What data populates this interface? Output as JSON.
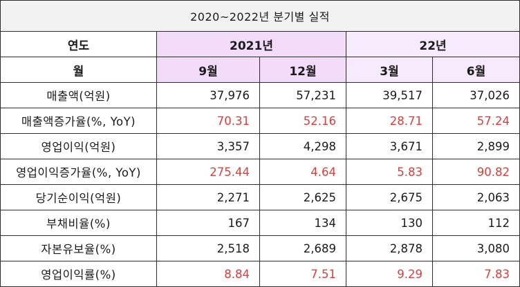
{
  "table": {
    "title": "2020~2022년 분기별 실적",
    "year_header": {
      "label": "연도",
      "groups": [
        "2021년",
        "22년"
      ]
    },
    "month_header": {
      "label": "월",
      "months": [
        "9월",
        "12월",
        "3월",
        "6월"
      ]
    },
    "rows": [
      {
        "label": "매출액(억원)",
        "values": [
          "37,976",
          "57,231",
          "39,517",
          "37,026"
        ],
        "color": "black"
      },
      {
        "label": "매출액증가율(%, YoY)",
        "values": [
          "70.31",
          "52.16",
          "28.71",
          "57.24"
        ],
        "color": "red"
      },
      {
        "label": "영업이익(억원)",
        "values": [
          "3,357",
          "4,298",
          "3,671",
          "2,899"
        ],
        "color": "black"
      },
      {
        "label": "영업이익증가율(%, YoY)",
        "values": [
          "275.44",
          "4.64",
          "5.83",
          "90.82"
        ],
        "color": "red"
      },
      {
        "label": "당기순이익(억원)",
        "values": [
          "2,271",
          "2,625",
          "2,675",
          "2,063"
        ],
        "color": "black"
      },
      {
        "label": "부채비율(%)",
        "values": [
          "167",
          "134",
          "130",
          "112"
        ],
        "color": "black"
      },
      {
        "label": "자본유보율(%)",
        "values": [
          "2,518",
          "2,689",
          "2,878",
          "3,080"
        ],
        "color": "black"
      },
      {
        "label": "영업이익률(%)",
        "values": [
          "8.84",
          "7.51",
          "9.29",
          "7.83"
        ],
        "color": "red"
      }
    ]
  },
  "colors": {
    "header_2021": "#f2dcfa",
    "header_22": "#f7eafc",
    "title_bg": "#f2f2f2",
    "red_text": "#e03a3a"
  }
}
